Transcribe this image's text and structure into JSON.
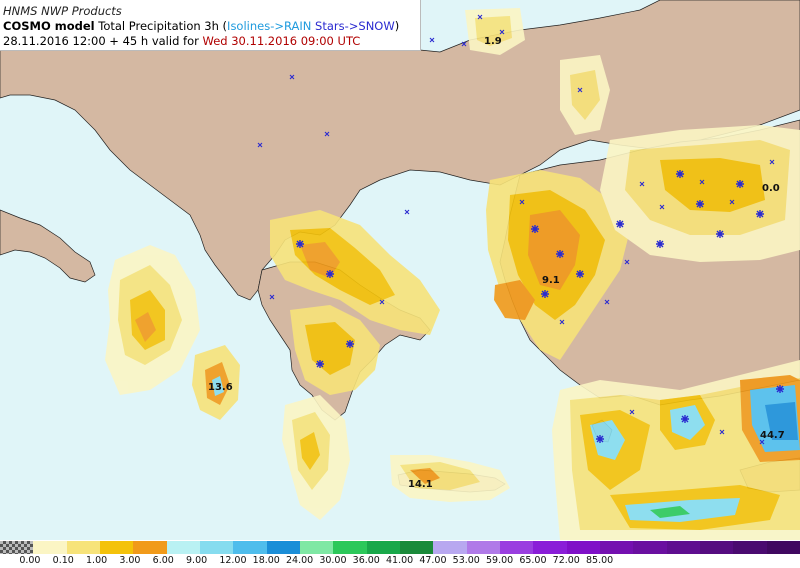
{
  "header": {
    "provider": "HNMS NWP Products",
    "model_name": "COSMO model",
    "product": " Total Precipitation 3h (",
    "isolines_rain": "Isolines->RAIN",
    "sep": " ",
    "stars_snow": "Stars->SNOW",
    "close": ")",
    "run": "28.11.2016 12:00 + 45 h valid for ",
    "valid": "Wed 30.11.2016 09:00 UTC"
  },
  "colors": {
    "sea": "#e0f5f8",
    "land": "#d4b8a2",
    "snow_symbol": "#2a2ad0",
    "valid_time": "#b00000"
  },
  "map_labels": [
    {
      "name": "max-label-north",
      "text": "1.9"
    },
    {
      "name": "max-label-turkey",
      "text": "0.0"
    },
    {
      "name": "max-label-ionian",
      "text": "13.6"
    },
    {
      "name": "max-label-aegean",
      "text": "9.1"
    },
    {
      "name": "max-label-crete",
      "text": "14.1"
    },
    {
      "name": "max-label-cyprus-east",
      "text": "44.7"
    }
  ],
  "legend": {
    "swatches": [
      "#707070",
      "#fbf5c4",
      "#f7e37a",
      "#f4c20a",
      "#f19a1a",
      "#b9f1f3",
      "#86dcef",
      "#4fbdec",
      "#1b8ed8",
      "#7fe8a4",
      "#2cc85a",
      "#19a84a",
      "#1b8a3a",
      "#b8a8f0",
      "#b07ae8",
      "#9a3ee0",
      "#8a1ed8",
      "#7f10c8",
      "#7410b0",
      "#6a0fa0",
      "#5f0e90",
      "#550c80",
      "#4a0a70",
      "#400860"
    ],
    "labels": [
      "0.00",
      "0.10",
      "1.00",
      "3.00",
      "6.00",
      "9.00",
      "12.00",
      "18.00",
      "24.00",
      "30.00",
      "36.00",
      "41.00",
      "47.00",
      "53.00",
      "59.00",
      "65.00",
      "72.00",
      "85.00"
    ]
  }
}
